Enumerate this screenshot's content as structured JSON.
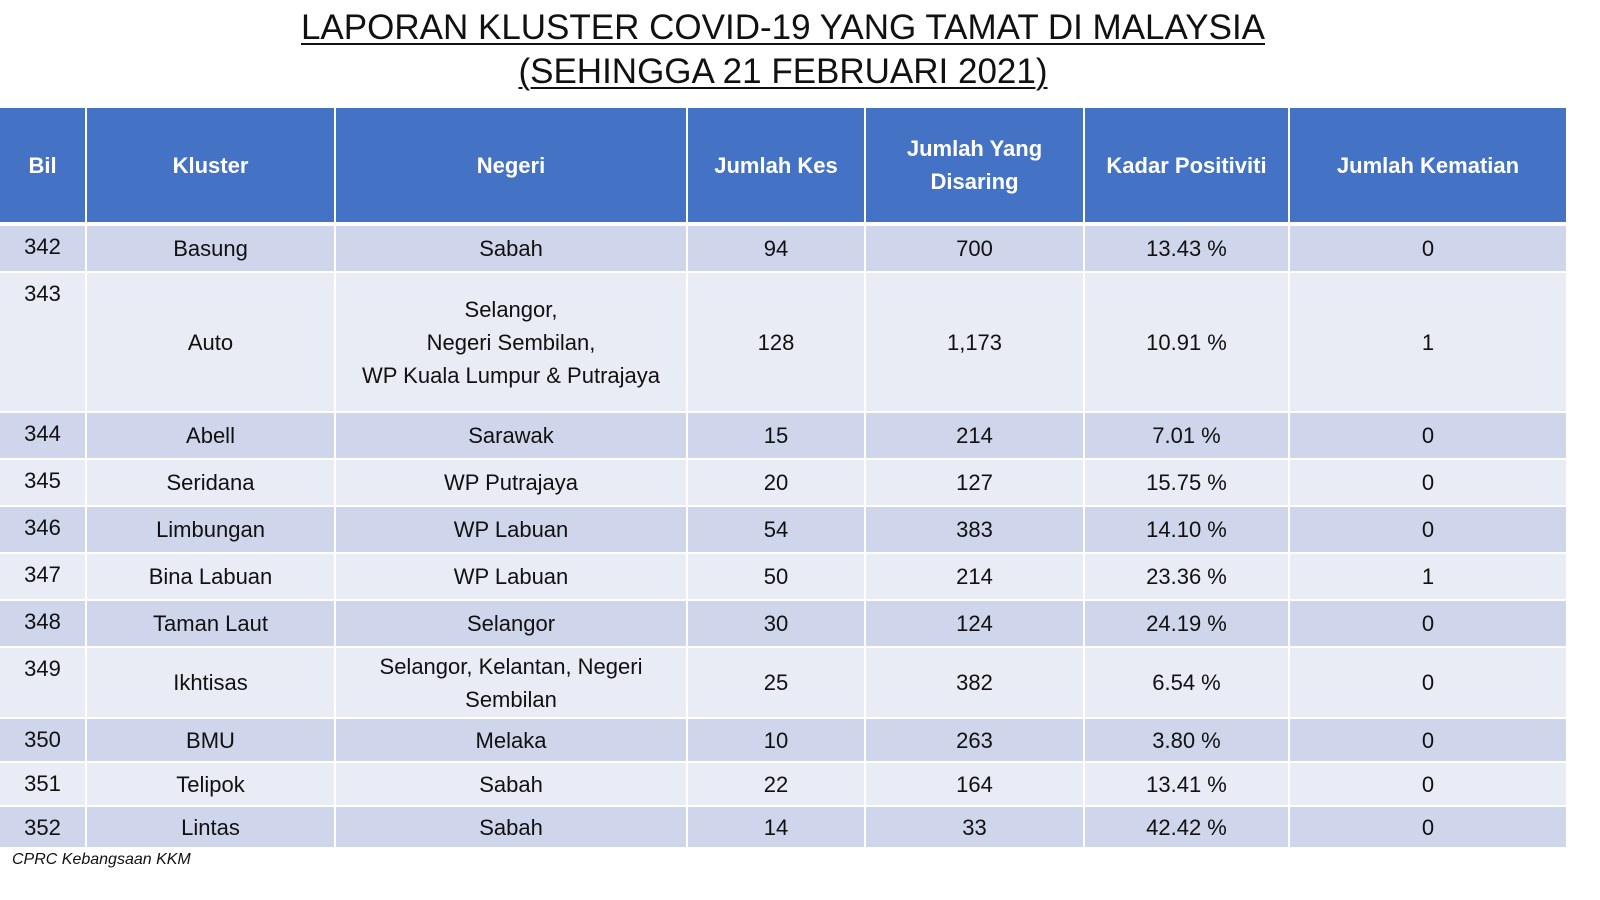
{
  "title": {
    "line1": "LAPORAN KLUSTER COVID-19 YANG TAMAT DI MALAYSIA",
    "line2": "(SEHINGGA 21 FEBRUARI 2021)"
  },
  "table": {
    "headers": [
      "Bil",
      "Kluster",
      "Negeri",
      "Jumlah Kes",
      "Jumlah Yang Disaring",
      "Kadar Positiviti",
      "Jumlah Kematian"
    ],
    "rows": [
      {
        "bil": "342",
        "kluster": "Basung",
        "negeri": [
          "Sabah"
        ],
        "kes": "94",
        "disaring": "700",
        "positiviti": "13.43 %",
        "kematian": "0"
      },
      {
        "bil": "343",
        "kluster": "Auto",
        "negeri": [
          "Selangor,",
          "Negeri Sembilan,",
          "WP Kuala Lumpur & Putrajaya"
        ],
        "kes": "128",
        "disaring": "1,173",
        "positiviti": "10.91 %",
        "kematian": "1"
      },
      {
        "bil": "344",
        "kluster": "Abell",
        "negeri": [
          "Sarawak"
        ],
        "kes": "15",
        "disaring": "214",
        "positiviti": "7.01 %",
        "kematian": "0"
      },
      {
        "bil": "345",
        "kluster": "Seridana",
        "negeri": [
          "WP Putrajaya"
        ],
        "kes": "20",
        "disaring": "127",
        "positiviti": "15.75 %",
        "kematian": "0"
      },
      {
        "bil": "346",
        "kluster": "Limbungan",
        "negeri": [
          "WP Labuan"
        ],
        "kes": "54",
        "disaring": "383",
        "positiviti": "14.10 %",
        "kematian": "0"
      },
      {
        "bil": "347",
        "kluster": "Bina Labuan",
        "negeri": [
          "WP Labuan"
        ],
        "kes": "50",
        "disaring": "214",
        "positiviti": "23.36 %",
        "kematian": "1"
      },
      {
        "bil": "348",
        "kluster": "Taman Laut",
        "negeri": [
          "Selangor"
        ],
        "kes": "30",
        "disaring": "124",
        "positiviti": "24.19 %",
        "kematian": "0"
      },
      {
        "bil": "349",
        "kluster": "Ikhtisas",
        "negeri": [
          "Selangor, Kelantan, Negeri",
          "Sembilan"
        ],
        "kes": "25",
        "disaring": "382",
        "positiviti": "6.54 %",
        "kematian": "0"
      },
      {
        "bil": "350",
        "kluster": "BMU",
        "negeri": [
          "Melaka"
        ],
        "kes": "10",
        "disaring": "263",
        "positiviti": "3.80 %",
        "kematian": "0"
      },
      {
        "bil": "351",
        "kluster": "Telipok",
        "negeri": [
          "Sabah"
        ],
        "kes": "22",
        "disaring": "164",
        "positiviti": "13.41 %",
        "kematian": "0"
      },
      {
        "bil": "352",
        "kluster": "Lintas",
        "negeri": [
          "Sabah"
        ],
        "kes": "14",
        "disaring": "33",
        "positiviti": "42.42 %",
        "kematian": "0"
      }
    ]
  },
  "source": "CPRC Kebangsaan KKM"
}
